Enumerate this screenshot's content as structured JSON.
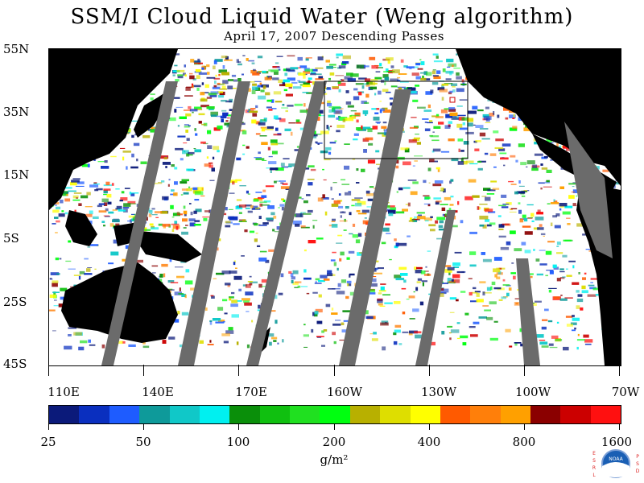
{
  "header": {
    "title": "SSM/I Cloud Liquid Water (Weng algorithm)",
    "subtitle": "April 17, 2007  Descending Passes"
  },
  "map": {
    "lat_labels": [
      "55N",
      "35N",
      "15N",
      "5S",
      "25S",
      "45S"
    ],
    "lon_labels": [
      "110E",
      "140E",
      "170E",
      "160W",
      "130W",
      "100W",
      "70W"
    ],
    "land_color": "#000000",
    "no_data_color": "#6b6b6b",
    "background_color": "#ffffff"
  },
  "colorbar": {
    "colors": [
      "#0b1a7a",
      "#0a2fbf",
      "#1e5cff",
      "#0e9a9a",
      "#10c8c8",
      "#00f0f0",
      "#0a8f0a",
      "#10c010",
      "#20e020",
      "#00ff10",
      "#b8b000",
      "#dede00",
      "#ffff00",
      "#ff5a00",
      "#ff7f0a",
      "#ffa000",
      "#8b0000",
      "#cc0000",
      "#ff1010"
    ],
    "tick_labels": [
      "25",
      "50",
      "100",
      "200",
      "400",
      "800",
      "1600"
    ],
    "units": "g/m²"
  },
  "logo": {
    "left_letters": "ESRL",
    "right_letters": "PSD",
    "badge_text": "NOAA"
  }
}
